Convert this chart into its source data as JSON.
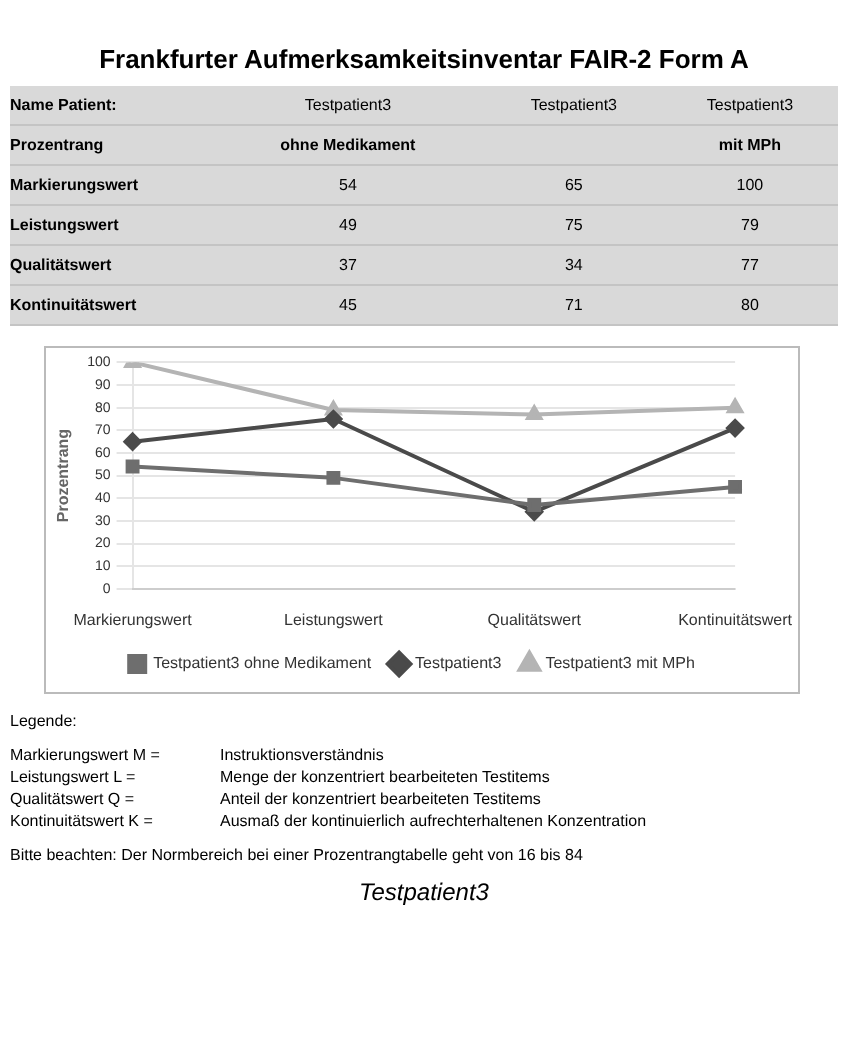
{
  "chart_data": [
    {
      "type": "other",
      "title": "Frankfurter Aufmerksamkeitsinventar FAIR-2 Form A",
      "annotations": [
        "Name Patient:",
        "Testpatient3",
        "Testpatient3",
        "Testpatient3",
        "Prozentrang",
        "ohne Medikament",
        "mit MPh",
        "Markierungswert",
        "54",
        "65",
        "100",
        "Leistungswert",
        "49",
        "75",
        "79",
        "Qualitätswert",
        "37",
        "34",
        "77",
        "Kontinuitätswert",
        "45",
        "71",
        "80"
      ]
    },
    {
      "type": "line",
      "ylabel": "Prozentrang",
      "categories": [
        "Markierungswert",
        "Leistungswert",
        "Qualitätswert",
        "Kontinuitätswert"
      ],
      "series": [
        {
          "name": "Testpatient3 ohne Medikament",
          "color": "#6e6e6e",
          "marker": "square",
          "values": [
            54,
            49,
            37,
            45
          ]
        },
        {
          "name": "Testpatient3",
          "color": "#4a4a4a",
          "marker": "diamond",
          "values": [
            65,
            75,
            34,
            71
          ]
        },
        {
          "name": "Testpatient3 mit MPh",
          "color": "#b4b4b4",
          "marker": "triangle",
          "values": [
            100,
            79,
            77,
            80
          ]
        }
      ],
      "ylim": [
        0,
        100
      ],
      "yticks": [
        0,
        10,
        20,
        30,
        40,
        50,
        60,
        70,
        80,
        90,
        100
      ],
      "grid": "y",
      "legend": "bottom",
      "annotations": [
        "Legende:",
        "Markierungswert M =",
        "Leistungswert L =",
        "Qualitätswert Q =",
        "Kontinuitätswert K =",
        "Instruktionsverständnis",
        "Menge der konzentriert bearbeiteten Testitems",
        "Anteil der konzentriert bearbeiteten Testitems",
        "Ausmaß der kontinuierlich aufrechterhaltenen Konzentration",
        "Bitte beachten: Der Normbereich bei einer Prozentrangtabelle geht von 16 bis 84",
        "Testpatient3"
      ]
    }
  ]
}
